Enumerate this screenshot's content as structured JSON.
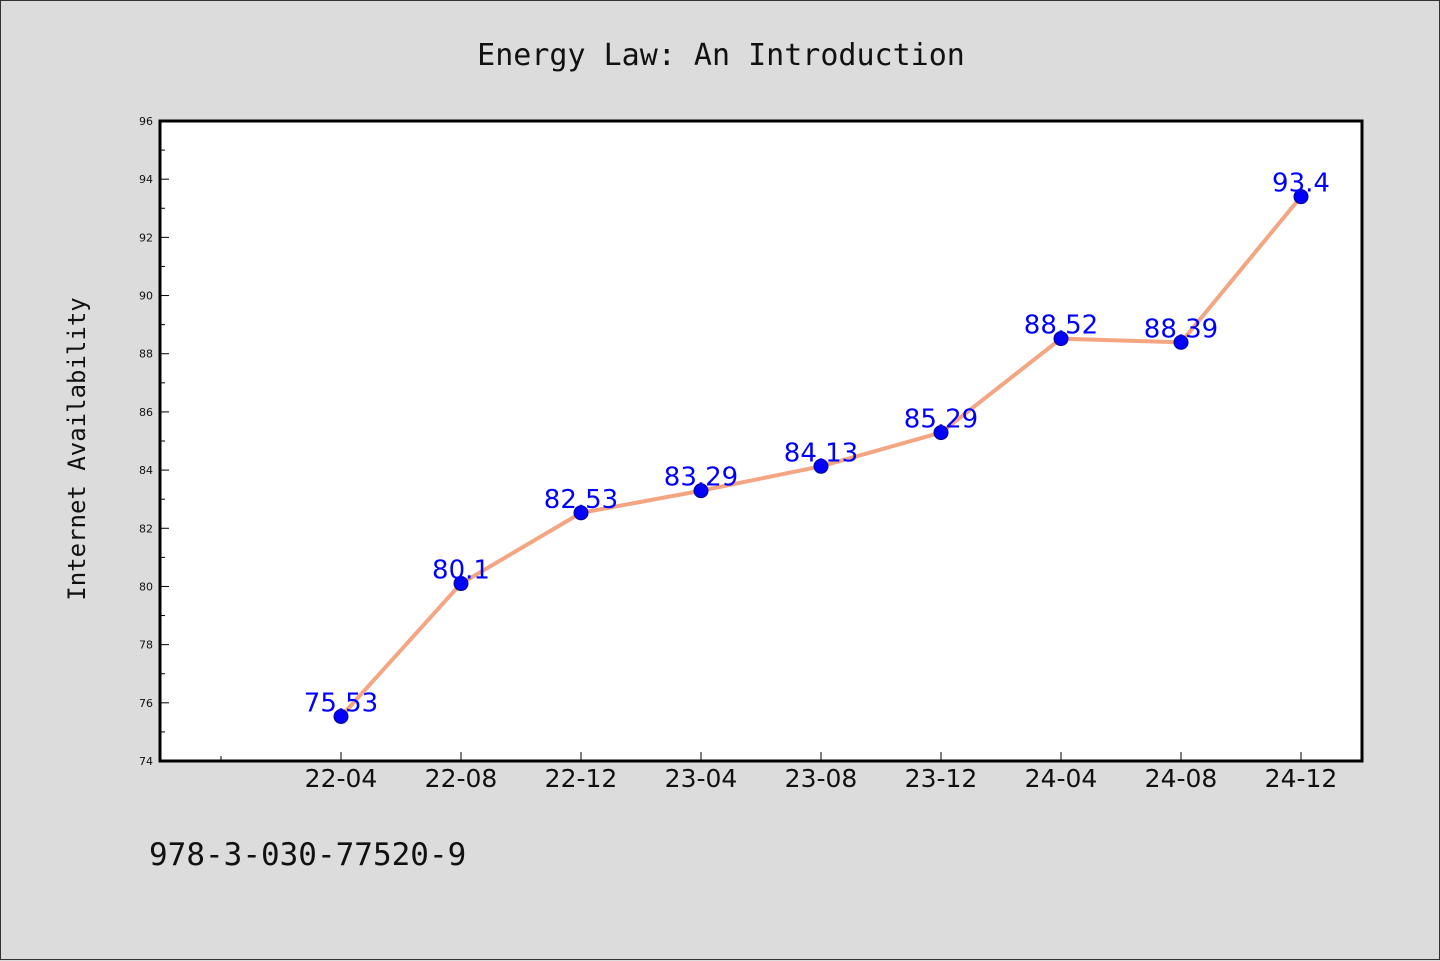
{
  "chart_data": {
    "type": "line",
    "title": "Energy Law: An Introduction",
    "xlabel": "",
    "ylabel": "Internet Availability",
    "categories": [
      "22-04",
      "22-08",
      "22-12",
      "23-04",
      "23-08",
      "23-12",
      "24-04",
      "24-08",
      "24-12"
    ],
    "x": [
      "22-04",
      "22-08",
      "22-12",
      "23-04",
      "23-08",
      "23-12",
      "24-04",
      "24-08",
      "24-12"
    ],
    "series": [
      {
        "values": [
          75.53,
          80.1,
          82.53,
          83.29,
          84.13,
          85.29,
          88.52,
          88.39,
          93.4
        ],
        "labels": [
          "75.53",
          "80.1",
          "82.53",
          "83.29",
          "84.13",
          "85.29",
          "88.52",
          "88.39",
          "93.4"
        ],
        "line_color": "#f4a582",
        "marker_color": "#0000ff"
      }
    ],
    "ylim": [
      74,
      96
    ],
    "yticks": [
      "74",
      "76",
      "78",
      "80",
      "82",
      "84",
      "86",
      "88",
      "90",
      "92",
      "94",
      "96"
    ],
    "grid": false,
    "legend": "none"
  },
  "footer": {
    "isbn": "978-3-030-77520-9"
  },
  "colors": {
    "background": "#dcdcdc",
    "plot_background": "#ffffff",
    "line": "#f4a582",
    "marker": "#0000ff",
    "data_label": "#0000ff"
  }
}
